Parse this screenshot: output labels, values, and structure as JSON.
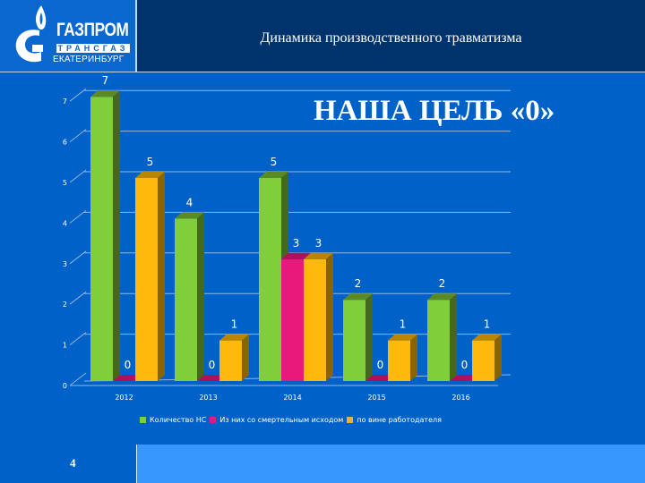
{
  "header": {
    "title": "Динамика производственного травматизма",
    "logo": {
      "line1": "ГАЗПРОМ",
      "line2": "ТРАНСГАЗ",
      "line3": "ЕКАТЕРИНБУРГ"
    }
  },
  "goal_text": "НАША ЦЕЛЬ «0»",
  "page_number": "4",
  "colors": {
    "background": "#0062c8",
    "header": "#00336b",
    "green": "#7fce3a",
    "magenta": "#e8197a",
    "orange": "#ffb80c"
  },
  "legend": [
    {
      "label": "Количество НС",
      "color": "#7fce3a"
    },
    {
      "label": "Из них со смертельным исходом",
      "color": "#e8197a"
    },
    {
      "label": "по вине работодателя",
      "color": "#ffb80c"
    }
  ],
  "chart_data": {
    "type": "bar",
    "title": "Динамика производственного травматизма",
    "categories": [
      "2012",
      "2013",
      "2014",
      "2015",
      "2016"
    ],
    "series": [
      {
        "name": "Количество НС",
        "values": [
          7,
          4,
          5,
          2,
          2
        ]
      },
      {
        "name": "Из них со смертельным исходом",
        "values": [
          0,
          0,
          3,
          0,
          0
        ]
      },
      {
        "name": "по вине работодателя",
        "values": [
          5,
          1,
          3,
          1,
          1
        ]
      }
    ],
    "xlabel": "",
    "ylabel": "",
    "ylim": [
      0,
      7
    ],
    "yticks": [
      0,
      1,
      2,
      3,
      4,
      5,
      6,
      7
    ],
    "grid": true,
    "legend_position": "bottom",
    "style": "3d-clustered-column",
    "annotation": "НАША ЦЕЛЬ «0»"
  }
}
